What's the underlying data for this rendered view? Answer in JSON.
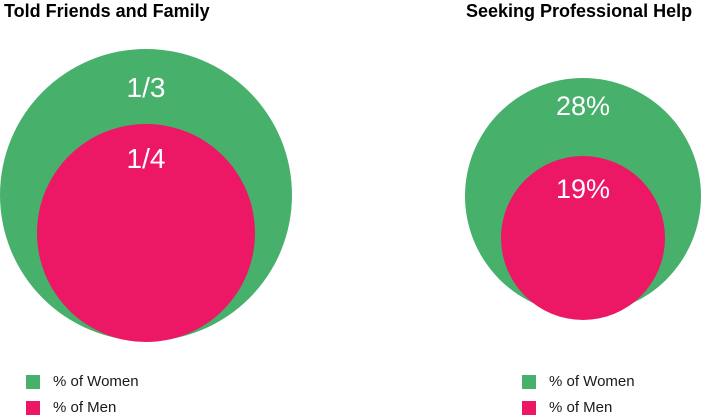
{
  "colors": {
    "women": "#47b06b",
    "men": "#ec1765",
    "label_text": "#ffffff"
  },
  "chart_data": [
    {
      "type": "nested-circles",
      "title": "Told Friends and Family",
      "series": [
        {
          "name": "% of Women",
          "value": 0.3333,
          "label": "1/3"
        },
        {
          "name": "% of Men",
          "value": 0.25,
          "label": "1/4"
        }
      ],
      "legend": [
        "% of Women",
        "% of Men"
      ],
      "legend_position": "bottom-left"
    },
    {
      "type": "nested-circles",
      "title": "Seeking Professional Help",
      "series": [
        {
          "name": "% of Women",
          "value": 28,
          "label": "28%"
        },
        {
          "name": "% of Men",
          "value": 19,
          "label": "19%"
        }
      ],
      "legend": [
        "% of Women",
        "% of Men"
      ],
      "legend_position": "bottom-right"
    }
  ]
}
